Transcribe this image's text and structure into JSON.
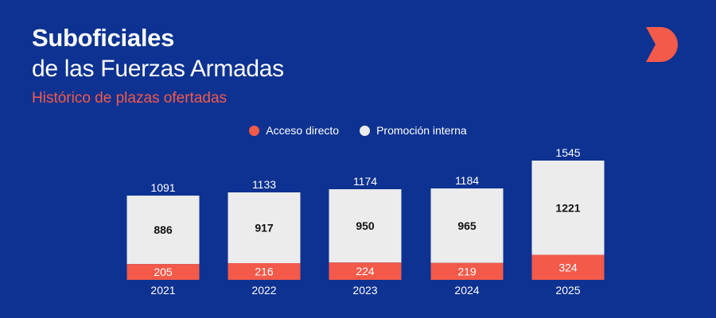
{
  "header": {
    "title_line1": "Suboficiales",
    "title_line2": "de las Fuerzas Armadas",
    "subtitle": "Histórico de plazas ofertadas"
  },
  "logo": {
    "icon": "d-logo-icon",
    "color": "#f45a4a"
  },
  "colors": {
    "background": "#0d3291",
    "acceso_directo": "#f45a4a",
    "promocion_interna": "#ececec",
    "text_light": "#ffffff",
    "text_dark": "#111111"
  },
  "chart_data": {
    "type": "bar",
    "stacked": true,
    "categories": [
      "2021",
      "2022",
      "2023",
      "2024",
      "2025"
    ],
    "series": [
      {
        "name": "Acceso directo",
        "color": "#f45a4a",
        "values": [
          205,
          216,
          224,
          219,
          324
        ]
      },
      {
        "name": "Promoción interna",
        "color": "#ececec",
        "values": [
          886,
          917,
          950,
          965,
          1221
        ]
      }
    ],
    "totals": [
      1091,
      1133,
      1174,
      1184,
      1545
    ],
    "ylim": [
      0,
      1545
    ],
    "grid": false,
    "legend": "top-center"
  }
}
